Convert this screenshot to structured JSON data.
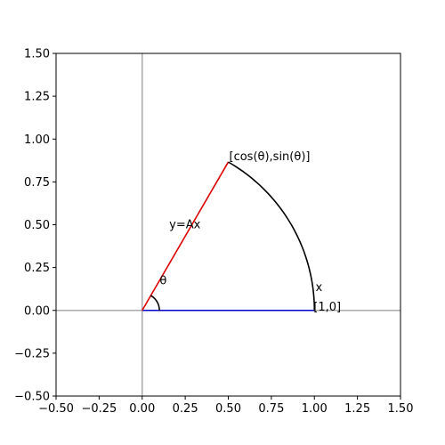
{
  "chart_data": {
    "type": "line",
    "title": "",
    "xlabel": "",
    "ylabel": "",
    "xlim": [
      -0.5,
      1.5
    ],
    "ylim": [
      -0.5,
      1.5
    ],
    "grid": false,
    "aspect": "equal",
    "x_ticks": [
      -0.5,
      -0.25,
      0.0,
      0.25,
      0.5,
      0.75,
      1.0,
      1.25,
      1.5
    ],
    "x_tick_labels": [
      "−0.50",
      "−0.25",
      "0.00",
      "0.25",
      "0.50",
      "0.75",
      "1.00",
      "1.25",
      "1.50"
    ],
    "y_ticks": [
      -0.5,
      -0.25,
      0.0,
      0.25,
      0.5,
      0.75,
      1.0,
      1.25,
      1.5
    ],
    "y_tick_labels": [
      "−0.50",
      "−0.25",
      "0.00",
      "0.25",
      "0.50",
      "0.75",
      "1.00",
      "1.25",
      "1.50"
    ],
    "theta_degrees": 60,
    "series": [
      {
        "kind": "axis-line",
        "color": "#aaaaaa",
        "x": [
          -0.5,
          1.5
        ],
        "y": [
          0,
          0
        ]
      },
      {
        "kind": "axis-line",
        "color": "#aaaaaa",
        "x": [
          0,
          0
        ],
        "y": [
          -0.5,
          1.5
        ]
      },
      {
        "kind": "vector",
        "color": "#0000cc",
        "x": [
          0,
          1
        ],
        "y": [
          0,
          0
        ]
      },
      {
        "kind": "vector",
        "color": "#dd0000",
        "x": [
          0,
          0.5
        ],
        "y": [
          0,
          0.866
        ]
      },
      {
        "kind": "arc",
        "color": "#000000",
        "center": [
          0,
          0
        ],
        "radius": 1.0,
        "theta_start_deg": 0,
        "theta_end_deg": 60
      },
      {
        "kind": "arc",
        "color": "#000000",
        "center": [
          0,
          0
        ],
        "radius": 0.1,
        "theta_start_deg": 0,
        "theta_end_deg": 60
      }
    ],
    "annotations": [
      {
        "text": "[cos(θ),sin(θ)]",
        "x": 0.5,
        "y": 0.866
      },
      {
        "text": "y=Ax",
        "x": 0.25,
        "y": 0.5
      },
      {
        "text": "θ",
        "x": 0.05,
        "y": 0.08
      },
      {
        "text": "x",
        "x": 0.5,
        "y": 0.06
      },
      {
        "text": "[1,0]",
        "x": 1.0,
        "y": 0.0
      }
    ]
  }
}
